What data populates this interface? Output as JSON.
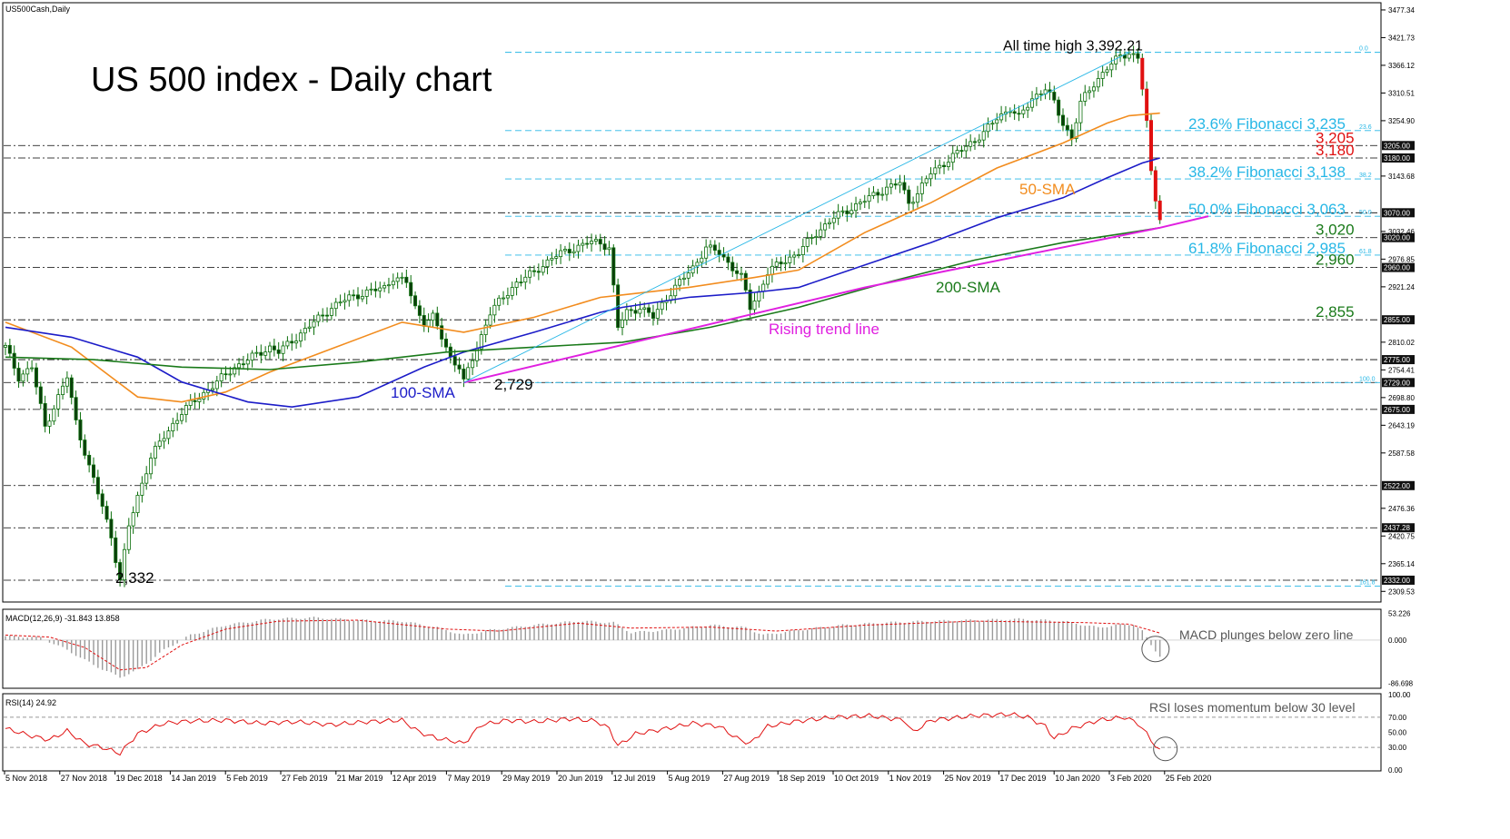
{
  "symbol_label": "US500Cash,Daily",
  "title": "US 500 index - Daily chart",
  "colors": {
    "candle": "#0a6e0a",
    "sma50": "#f28c1e",
    "sma100": "#1c1cc8",
    "sma200": "#1a7a1a",
    "trend": "#e020e0",
    "fib": "#27b7e6",
    "level": "#000000",
    "red_level": "#e01010",
    "green_level": "#1a7a1a",
    "macd": "#e01010",
    "rsi": "#e01010"
  },
  "chart_data": [
    {
      "type": "candlestick",
      "panel": "price",
      "x_labels": [
        "5 Nov 2018",
        "27 Nov 2018",
        "19 Dec 2018",
        "14 Jan 2019",
        "5 Feb 2019",
        "27 Feb 2019",
        "21 Mar 2019",
        "12 Apr 2019",
        "7 May 2019",
        "29 May 2019",
        "20 Jun 2019",
        "12 Jul 2019",
        "5 Aug 2019",
        "27 Aug 2019",
        "18 Sep 2019",
        "10 Oct 2019",
        "1 Nov 2019",
        "25 Nov 2019",
        "17 Dec 2019",
        "10 Jan 2020",
        "3 Feb 2020",
        "25 Feb 2020"
      ],
      "y_ticks": [
        "3477.34",
        "3421.73",
        "3366.12",
        "3310.51",
        "3254.90",
        "3143.68",
        "3032.46",
        "2976.85",
        "2921.24",
        "2810.02",
        "2754.41",
        "2698.80",
        "2643.19",
        "2587.58",
        "2476.36",
        "2420.75",
        "2365.14",
        "2309.53"
      ],
      "ylim": [
        2290,
        3490
      ],
      "price_path": [
        [
          0,
          2800
        ],
        [
          3,
          2740
        ],
        [
          6,
          2760
        ],
        [
          9,
          2640
        ],
        [
          12,
          2700
        ],
        [
          14,
          2740
        ],
        [
          16,
          2650
        ],
        [
          19,
          2560
        ],
        [
          22,
          2480
        ],
        [
          24,
          2420
        ],
        [
          26,
          2332
        ],
        [
          28,
          2440
        ],
        [
          30,
          2500
        ],
        [
          33,
          2580
        ],
        [
          36,
          2620
        ],
        [
          40,
          2670
        ],
        [
          44,
          2700
        ],
        [
          48,
          2730
        ],
        [
          52,
          2760
        ],
        [
          56,
          2780
        ],
        [
          60,
          2800
        ],
        [
          62,
          2790
        ],
        [
          66,
          2820
        ],
        [
          70,
          2850
        ],
        [
          74,
          2880
        ],
        [
          78,
          2900
        ],
        [
          82,
          2910
        ],
        [
          86,
          2920
        ],
        [
          88,
          2940
        ],
        [
          91,
          2930
        ],
        [
          93,
          2880
        ],
        [
          95,
          2850
        ],
        [
          97,
          2860
        ],
        [
          99,
          2820
        ],
        [
          101,
          2780
        ],
        [
          103,
          2760
        ],
        [
          104,
          2729
        ],
        [
          107,
          2800
        ],
        [
          110,
          2870
        ],
        [
          113,
          2900
        ],
        [
          116,
          2930
        ],
        [
          120,
          2950
        ],
        [
          124,
          2980
        ],
        [
          128,
          2995
        ],
        [
          132,
          3010
        ],
        [
          135,
          3010
        ],
        [
          137,
          3000
        ],
        [
          139,
          2840
        ],
        [
          141,
          2870
        ],
        [
          144,
          2880
        ],
        [
          147,
          2860
        ],
        [
          150,
          2900
        ],
        [
          153,
          2930
        ],
        [
          156,
          2960
        ],
        [
          159,
          3000
        ],
        [
          162,
          2990
        ],
        [
          165,
          2960
        ],
        [
          167,
          2940
        ],
        [
          169,
          2880
        ],
        [
          171,
          2910
        ],
        [
          173,
          2950
        ],
        [
          176,
          2970
        ],
        [
          180,
          2990
        ],
        [
          184,
          3030
        ],
        [
          188,
          3060
        ],
        [
          192,
          3080
        ],
        [
          196,
          3100
        ],
        [
          200,
          3120
        ],
        [
          203,
          3130
        ],
        [
          205,
          3090
        ],
        [
          207,
          3110
        ],
        [
          210,
          3150
        ],
        [
          213,
          3170
        ],
        [
          216,
          3190
        ],
        [
          219,
          3210
        ],
        [
          222,
          3230
        ],
        [
          225,
          3260
        ],
        [
          228,
          3280
        ],
        [
          230,
          3260
        ],
        [
          233,
          3300
        ],
        [
          236,
          3320
        ],
        [
          238,
          3290
        ],
        [
          240,
          3250
        ],
        [
          242,
          3220
        ],
        [
          244,
          3290
        ],
        [
          247,
          3330
        ],
        [
          250,
          3360
        ],
        [
          253,
          3385
        ],
        [
          255,
          3392
        ],
        [
          257,
          3380
        ],
        [
          258,
          3320
        ],
        [
          259,
          3250
        ],
        [
          260,
          3150
        ],
        [
          261,
          3100
        ],
        [
          262,
          3063
        ]
      ],
      "series": [
        {
          "name": "50-SMA",
          "points": [
            [
              0,
              2850
            ],
            [
              15,
              2800
            ],
            [
              30,
              2700
            ],
            [
              40,
              2690
            ],
            [
              50,
              2710
            ],
            [
              60,
              2750
            ],
            [
              75,
              2800
            ],
            [
              90,
              2850
            ],
            [
              104,
              2830
            ],
            [
              120,
              2860
            ],
            [
              135,
              2900
            ],
            [
              140,
              2905
            ],
            [
              155,
              2920
            ],
            [
              170,
              2940
            ],
            [
              180,
              2955
            ],
            [
              195,
              3030
            ],
            [
              210,
              3090
            ],
            [
              225,
              3160
            ],
            [
              240,
              3210
            ],
            [
              250,
              3250
            ],
            [
              255,
              3265
            ],
            [
              262,
              3270
            ]
          ]
        },
        {
          "name": "100-SMA",
          "points": [
            [
              0,
              2840
            ],
            [
              15,
              2820
            ],
            [
              30,
              2780
            ],
            [
              40,
              2730
            ],
            [
              55,
              2690
            ],
            [
              65,
              2680
            ],
            [
              80,
              2700
            ],
            [
              95,
              2760
            ],
            [
              104,
              2790
            ],
            [
              120,
              2830
            ],
            [
              135,
              2870
            ],
            [
              140,
              2880
            ],
            [
              155,
              2900
            ],
            [
              170,
              2910
            ],
            [
              180,
              2920
            ],
            [
              195,
              2965
            ],
            [
              210,
              3010
            ],
            [
              225,
              3060
            ],
            [
              240,
              3100
            ],
            [
              250,
              3140
            ],
            [
              258,
              3170
            ],
            [
              262,
              3180
            ]
          ]
        },
        {
          "name": "200-SMA",
          "points": [
            [
              0,
              2780
            ],
            [
              20,
              2775
            ],
            [
              40,
              2760
            ],
            [
              60,
              2755
            ],
            [
              80,
              2770
            ],
            [
              100,
              2790
            ],
            [
              120,
              2800
            ],
            [
              140,
              2810
            ],
            [
              160,
              2840
            ],
            [
              180,
              2880
            ],
            [
              200,
              2930
            ],
            [
              220,
              2975
            ],
            [
              240,
              3010
            ],
            [
              255,
              3030
            ],
            [
              262,
              3040
            ]
          ]
        },
        {
          "name": "Rising trend line",
          "points": [
            [
              104,
              2729
            ],
            [
              195,
              2920
            ],
            [
              262,
              3040
            ],
            [
              273,
              3063
            ]
          ]
        },
        {
          "name": "Channel top",
          "points": [
            [
              104,
              2729
            ],
            [
              255,
              3392
            ]
          ]
        }
      ],
      "fibonacci": [
        {
          "level": "0.0",
          "price": 3392.21,
          "label": "All time high 3,392.21"
        },
        {
          "level": "23.6",
          "price": 3235,
          "label": "23.6% Fibonacci 3,235"
        },
        {
          "level": "38.2",
          "price": 3138,
          "label": "38.2% Fibonacci 3,138"
        },
        {
          "level": "50.0",
          "price": 3063,
          "label": "50.0% Fibonacci 3,063"
        },
        {
          "level": "61.8",
          "price": 2985,
          "label": "61.8% Fibonacci 2,985"
        },
        {
          "level": "100.0",
          "price": 2729,
          "label": ""
        },
        {
          "level": "161.8",
          "price": 2320,
          "label": ""
        }
      ],
      "levels": [
        {
          "price": 3205,
          "label": "3,205",
          "tag": "3205.00",
          "color": "red_level"
        },
        {
          "price": 3180,
          "label": "3,180",
          "tag": "3180.00",
          "color": "red_level"
        },
        {
          "price": 3070,
          "label": "",
          "tag": "3070.00",
          "color": "level"
        },
        {
          "price": 3020,
          "label": "3,020",
          "tag": "3020.00",
          "color": "green_level"
        },
        {
          "price": 2960,
          "label": "2,960",
          "tag": "2960.00",
          "color": "green_level"
        },
        {
          "price": 2855,
          "label": "2,855",
          "tag": "2855.00",
          "color": "green_level"
        },
        {
          "price": 2775,
          "label": "",
          "tag": "2775.00",
          "color": "level"
        },
        {
          "price": 2729,
          "label": "",
          "tag": "2729.00",
          "color": "level"
        },
        {
          "price": 2675,
          "label": "",
          "tag": "2675.00",
          "color": "level"
        },
        {
          "price": 2522,
          "label": "",
          "tag": "2522.00",
          "color": "level"
        },
        {
          "price": 2437.28,
          "label": "",
          "tag": "2437.28",
          "color": "level"
        },
        {
          "price": 2332,
          "label": "",
          "tag": "2332.00",
          "color": "level"
        }
      ],
      "annotations": [
        "2,332",
        "2,729",
        "100-SMA",
        "50-SMA",
        "200-SMA",
        "Rising trend line"
      ]
    },
    {
      "type": "histogram",
      "panel": "macd",
      "label": "MACD(12,26,9) -31.843 13.858",
      "y_ticks": [
        "53.226",
        "0.000",
        "-86.698"
      ],
      "ylim": [
        -95,
        60
      ],
      "annotation": "MACD plunges below zero line",
      "hist_path": [
        [
          0,
          8
        ],
        [
          8,
          5
        ],
        [
          14,
          -20
        ],
        [
          20,
          -50
        ],
        [
          26,
          -75
        ],
        [
          30,
          -60
        ],
        [
          36,
          -20
        ],
        [
          42,
          10
        ],
        [
          50,
          30
        ],
        [
          60,
          42
        ],
        [
          70,
          45
        ],
        [
          80,
          40
        ],
        [
          90,
          38
        ],
        [
          98,
          25
        ],
        [
          104,
          10
        ],
        [
          110,
          20
        ],
        [
          120,
          30
        ],
        [
          130,
          38
        ],
        [
          138,
          35
        ],
        [
          142,
          15
        ],
        [
          150,
          20
        ],
        [
          160,
          30
        ],
        [
          168,
          25
        ],
        [
          172,
          10
        ],
        [
          180,
          20
        ],
        [
          190,
          30
        ],
        [
          200,
          35
        ],
        [
          210,
          38
        ],
        [
          220,
          40
        ],
        [
          230,
          42
        ],
        [
          240,
          38
        ],
        [
          248,
          25
        ],
        [
          252,
          30
        ],
        [
          256,
          32
        ],
        [
          258,
          18
        ],
        [
          260,
          -10
        ],
        [
          262,
          -32
        ]
      ],
      "signal_path": [
        [
          0,
          10
        ],
        [
          10,
          6
        ],
        [
          18,
          -15
        ],
        [
          26,
          -60
        ],
        [
          32,
          -55
        ],
        [
          40,
          -10
        ],
        [
          50,
          22
        ],
        [
          62,
          38
        ],
        [
          80,
          40
        ],
        [
          100,
          22
        ],
        [
          112,
          18
        ],
        [
          130,
          34
        ],
        [
          142,
          24
        ],
        [
          160,
          26
        ],
        [
          175,
          18
        ],
        [
          195,
          30
        ],
        [
          220,
          38
        ],
        [
          245,
          35
        ],
        [
          255,
          32
        ],
        [
          262,
          14
        ]
      ]
    },
    {
      "type": "line",
      "panel": "rsi",
      "label": "RSI(14) 24.92",
      "y_ticks": [
        "100.00",
        "70.00",
        "50.00",
        "30.00",
        "0.00"
      ],
      "ylim": [
        0,
        100
      ],
      "annotation": "RSI loses momentum below 30 level",
      "path": [
        [
          0,
          55
        ],
        [
          6,
          45
        ],
        [
          10,
          40
        ],
        [
          14,
          52
        ],
        [
          18,
          35
        ],
        [
          22,
          30
        ],
        [
          26,
          22
        ],
        [
          30,
          48
        ],
        [
          36,
          62
        ],
        [
          42,
          65
        ],
        [
          50,
          66
        ],
        [
          58,
          62
        ],
        [
          66,
          64
        ],
        [
          74,
          60
        ],
        [
          82,
          64
        ],
        [
          90,
          66
        ],
        [
          94,
          50
        ],
        [
          98,
          42
        ],
        [
          102,
          38
        ],
        [
          104,
          35
        ],
        [
          108,
          60
        ],
        [
          114,
          66
        ],
        [
          120,
          64
        ],
        [
          128,
          68
        ],
        [
          134,
          65
        ],
        [
          137,
          55
        ],
        [
          139,
          32
        ],
        [
          143,
          48
        ],
        [
          150,
          55
        ],
        [
          156,
          62
        ],
        [
          162,
          58
        ],
        [
          166,
          42
        ],
        [
          169,
          35
        ],
        [
          173,
          58
        ],
        [
          180,
          65
        ],
        [
          188,
          70
        ],
        [
          196,
          72
        ],
        [
          204,
          66
        ],
        [
          206,
          50
        ],
        [
          210,
          66
        ],
        [
          220,
          72
        ],
        [
          228,
          74
        ],
        [
          232,
          70
        ],
        [
          236,
          58
        ],
        [
          238,
          42
        ],
        [
          242,
          55
        ],
        [
          248,
          66
        ],
        [
          254,
          70
        ],
        [
          257,
          62
        ],
        [
          259,
          48
        ],
        [
          261,
          32
        ],
        [
          262,
          24.92
        ]
      ]
    }
  ]
}
